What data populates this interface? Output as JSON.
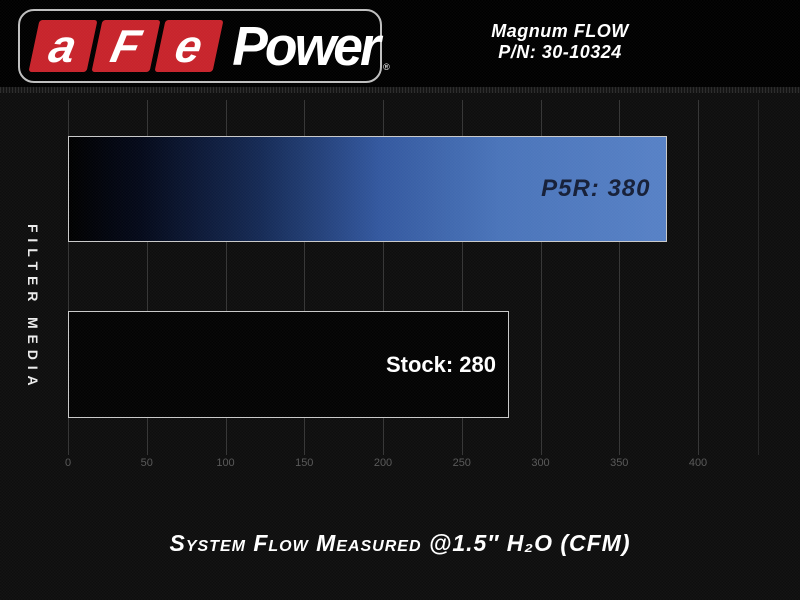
{
  "brand": {
    "logo_tiles": [
      "a",
      "F",
      "e"
    ],
    "logo_rest": "Power",
    "registered_mark": "®",
    "red": "#c8242b"
  },
  "product": {
    "line1": "Magnum FLOW",
    "line2": "P/N: 30-10324"
  },
  "chart_data": {
    "type": "bar",
    "orientation": "horizontal",
    "categories": [
      "P5R",
      "Stock"
    ],
    "values": [
      380,
      280
    ],
    "bar_labels": [
      "P5R: 380",
      "Stock: 280"
    ],
    "xlim": [
      0,
      400
    ],
    "xticks": [
      0,
      50,
      100,
      150,
      200,
      250,
      300,
      350,
      400
    ],
    "ylabel": "FILTER MEDIA",
    "xlabel": "System Flow Measured @1.5″ H₂O (CFM)",
    "grid": "vertical-only",
    "legend_position": "none",
    "colors": {
      "p5r_bar_gradient_end": "#5781c6",
      "p5r_label_text": "#161f38",
      "stock_bar_fill": "#030303",
      "stock_label_text": "#ffffff",
      "bar_border": "#c9c9c9",
      "background": "#0e0e0e",
      "header_background": "#000000",
      "tick_text": "#585858"
    }
  }
}
